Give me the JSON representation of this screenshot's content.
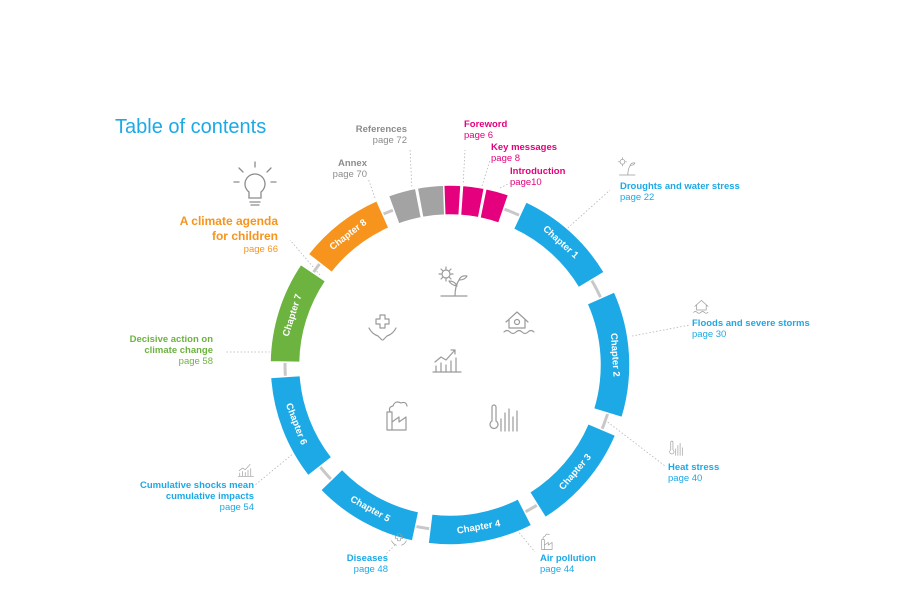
{
  "title": "Table of contents",
  "colors": {
    "blue": "#1ca9e6",
    "pink": "#e5007d",
    "grey": "#a3a3a3",
    "green": "#6cb33f",
    "orange": "#f7941d",
    "ring": "#c8c8c8"
  },
  "front": {
    "references": {
      "title": "References",
      "page": "page 72"
    },
    "annex": {
      "title": "Annex",
      "page": "page 70"
    },
    "foreword": {
      "title": "Foreword",
      "page": "page 6"
    },
    "key_messages": {
      "title": "Key messages",
      "page": "page 8"
    },
    "introduction": {
      "title": "Introduction",
      "page": "page10"
    }
  },
  "chapters": [
    {
      "label": "Chapter 1",
      "topic": "Droughts and water stress",
      "page": "page 22",
      "icon": "sun-plant-icon"
    },
    {
      "label": "Chapter 2",
      "topic": "Floods and severe storms",
      "page": "page 30",
      "icon": "flood-house-icon"
    },
    {
      "label": "Chapter 3",
      "topic": "Heat stress",
      "page": "page 40",
      "icon": "thermometer-icon"
    },
    {
      "label": "Chapter 4",
      "topic": "Air pollution",
      "page": "page 44",
      "icon": "factory-icon"
    },
    {
      "label": "Chapter 5",
      "topic": "Diseases",
      "page": "page 48",
      "icon": "medical-hands-icon"
    },
    {
      "label": "Chapter 6",
      "topic1": "Cumulative shocks mean",
      "topic2": "cumulative impacts",
      "page": "page 54",
      "icon": "rising-chart-icon"
    },
    {
      "label": "Chapter 7",
      "topic1": "Decisive action on",
      "topic2": "climate change",
      "page": "page 58"
    },
    {
      "label": "Chapter 8",
      "topic1": "A climate agenda",
      "topic2": "for children",
      "page": "page 66",
      "icon": "lightbulb-icon"
    }
  ]
}
